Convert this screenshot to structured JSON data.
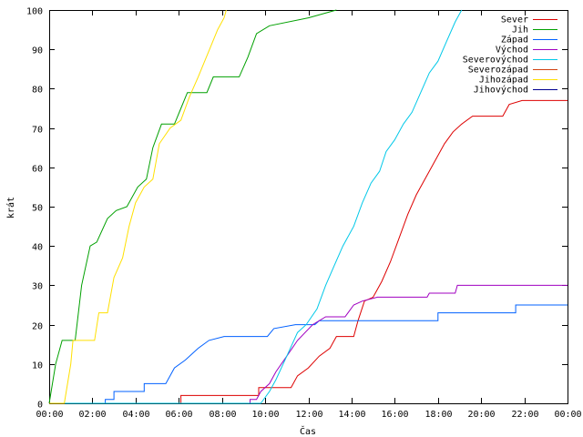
{
  "chart_data": {
    "type": "line",
    "xlabel": "Čas",
    "ylabel": "krát",
    "xlim": [
      0,
      24
    ],
    "ylim": [
      0,
      100
    ],
    "x_ticks": [
      "00:00",
      "02:00",
      "04:00",
      "06:00",
      "08:00",
      "10:00",
      "12:00",
      "14:00",
      "16:00",
      "18:00",
      "20:00",
      "22:00",
      "00:00"
    ],
    "y_ticks": [
      "0",
      "10",
      "20",
      "30",
      "40",
      "50",
      "60",
      "70",
      "80",
      "90",
      "100"
    ],
    "grid": false,
    "legend_position": "top-right",
    "series": [
      {
        "name": "Sever",
        "color": "#dd0000",
        "points": [
          [
            0,
            0
          ],
          [
            6.1,
            0
          ],
          [
            6.1,
            2
          ],
          [
            9.7,
            2
          ],
          [
            9.7,
            4
          ],
          [
            11.2,
            4
          ],
          [
            11.5,
            7
          ],
          [
            12.0,
            9
          ],
          [
            12.5,
            12
          ],
          [
            13.0,
            14
          ],
          [
            13.3,
            17
          ],
          [
            14.1,
            17
          ],
          [
            14.3,
            21
          ],
          [
            14.6,
            26
          ],
          [
            15.0,
            27
          ],
          [
            15.4,
            31
          ],
          [
            15.8,
            36
          ],
          [
            16.2,
            42
          ],
          [
            16.6,
            48
          ],
          [
            17.0,
            53
          ],
          [
            17.4,
            57
          ],
          [
            17.8,
            61
          ],
          [
            18.3,
            66
          ],
          [
            18.7,
            69
          ],
          [
            19.1,
            71
          ],
          [
            19.6,
            73
          ],
          [
            21.0,
            73
          ],
          [
            21.3,
            76
          ],
          [
            21.9,
            77
          ],
          [
            24,
            77
          ]
        ]
      },
      {
        "name": "Jih",
        "color": "#00a000",
        "points": [
          [
            0,
            0
          ],
          [
            0.3,
            10
          ],
          [
            0.6,
            16
          ],
          [
            1.2,
            16
          ],
          [
            1.5,
            30
          ],
          [
            1.9,
            40
          ],
          [
            2.2,
            41
          ],
          [
            2.7,
            47
          ],
          [
            3.1,
            49
          ],
          [
            3.6,
            50
          ],
          [
            4.1,
            55
          ],
          [
            4.5,
            57
          ],
          [
            4.8,
            65
          ],
          [
            5.2,
            71
          ],
          [
            5.8,
            71
          ],
          [
            6.1,
            75
          ],
          [
            6.4,
            79
          ],
          [
            7.3,
            79
          ],
          [
            7.6,
            83
          ],
          [
            8.8,
            83
          ],
          [
            9.2,
            88
          ],
          [
            9.6,
            94
          ],
          [
            10.2,
            96
          ],
          [
            12.0,
            98
          ],
          [
            13.3,
            100
          ]
        ]
      },
      {
        "name": "Západ",
        "color": "#0060ff",
        "points": [
          [
            0,
            0
          ],
          [
            2.6,
            0
          ],
          [
            2.6,
            1
          ],
          [
            3.0,
            1
          ],
          [
            3.0,
            3
          ],
          [
            4.4,
            3
          ],
          [
            4.4,
            5
          ],
          [
            5.4,
            5
          ],
          [
            5.8,
            9
          ],
          [
            6.3,
            11
          ],
          [
            6.9,
            14
          ],
          [
            7.4,
            16
          ],
          [
            8.1,
            17
          ],
          [
            10.1,
            17
          ],
          [
            10.4,
            19
          ],
          [
            11.4,
            20
          ],
          [
            12.3,
            20
          ],
          [
            12.5,
            21
          ],
          [
            18.0,
            21
          ],
          [
            18.0,
            23
          ],
          [
            21.6,
            23
          ],
          [
            21.6,
            25
          ],
          [
            24,
            25
          ]
        ]
      },
      {
        "name": "Východ",
        "color": "#a000c0",
        "points": [
          [
            0,
            0
          ],
          [
            9.3,
            0
          ],
          [
            9.3,
            1
          ],
          [
            9.6,
            1
          ],
          [
            9.8,
            3
          ],
          [
            10.2,
            5
          ],
          [
            10.5,
            8
          ],
          [
            11.0,
            12
          ],
          [
            11.5,
            16
          ],
          [
            12.2,
            20
          ],
          [
            12.8,
            22
          ],
          [
            13.7,
            22
          ],
          [
            14.1,
            25
          ],
          [
            14.5,
            26
          ],
          [
            15.2,
            27
          ],
          [
            17.5,
            27
          ],
          [
            17.6,
            28
          ],
          [
            18.8,
            28
          ],
          [
            18.9,
            30
          ],
          [
            24,
            30
          ]
        ]
      },
      {
        "name": "Severovýchod",
        "color": "#00c8e8",
        "points": [
          [
            0,
            0
          ],
          [
            9.8,
            0
          ],
          [
            10.2,
            3
          ],
          [
            10.5,
            6
          ],
          [
            11.0,
            12
          ],
          [
            11.5,
            18
          ],
          [
            11.9,
            20
          ],
          [
            12.4,
            24
          ],
          [
            12.8,
            30
          ],
          [
            13.2,
            35
          ],
          [
            13.6,
            40
          ],
          [
            14.1,
            45
          ],
          [
            14.5,
            51
          ],
          [
            14.9,
            56
          ],
          [
            15.3,
            59
          ],
          [
            15.6,
            64
          ],
          [
            16.0,
            67
          ],
          [
            16.4,
            71
          ],
          [
            16.8,
            74
          ],
          [
            17.2,
            79
          ],
          [
            17.6,
            84
          ],
          [
            18.0,
            87
          ],
          [
            18.4,
            92
          ],
          [
            18.8,
            97
          ],
          [
            19.1,
            100
          ]
        ]
      },
      {
        "name": "Severozápad",
        "color": "#d04010",
        "points": []
      },
      {
        "name": "Jihozápad",
        "color": "#ffe000",
        "points": [
          [
            0,
            0
          ],
          [
            0.7,
            0
          ],
          [
            1.0,
            10
          ],
          [
            1.1,
            16
          ],
          [
            2.1,
            16
          ],
          [
            2.3,
            23
          ],
          [
            2.7,
            23
          ],
          [
            3.0,
            32
          ],
          [
            3.4,
            37
          ],
          [
            3.7,
            45
          ],
          [
            4.0,
            51
          ],
          [
            4.4,
            55
          ],
          [
            4.8,
            57
          ],
          [
            5.1,
            66
          ],
          [
            5.6,
            70
          ],
          [
            6.1,
            72
          ],
          [
            6.5,
            78
          ],
          [
            6.9,
            83
          ],
          [
            7.2,
            87
          ],
          [
            7.5,
            91
          ],
          [
            7.8,
            95
          ],
          [
            8.1,
            98
          ],
          [
            8.2,
            100
          ]
        ]
      },
      {
        "name": "Jihovýchod",
        "color": "#000090",
        "points": []
      }
    ]
  }
}
